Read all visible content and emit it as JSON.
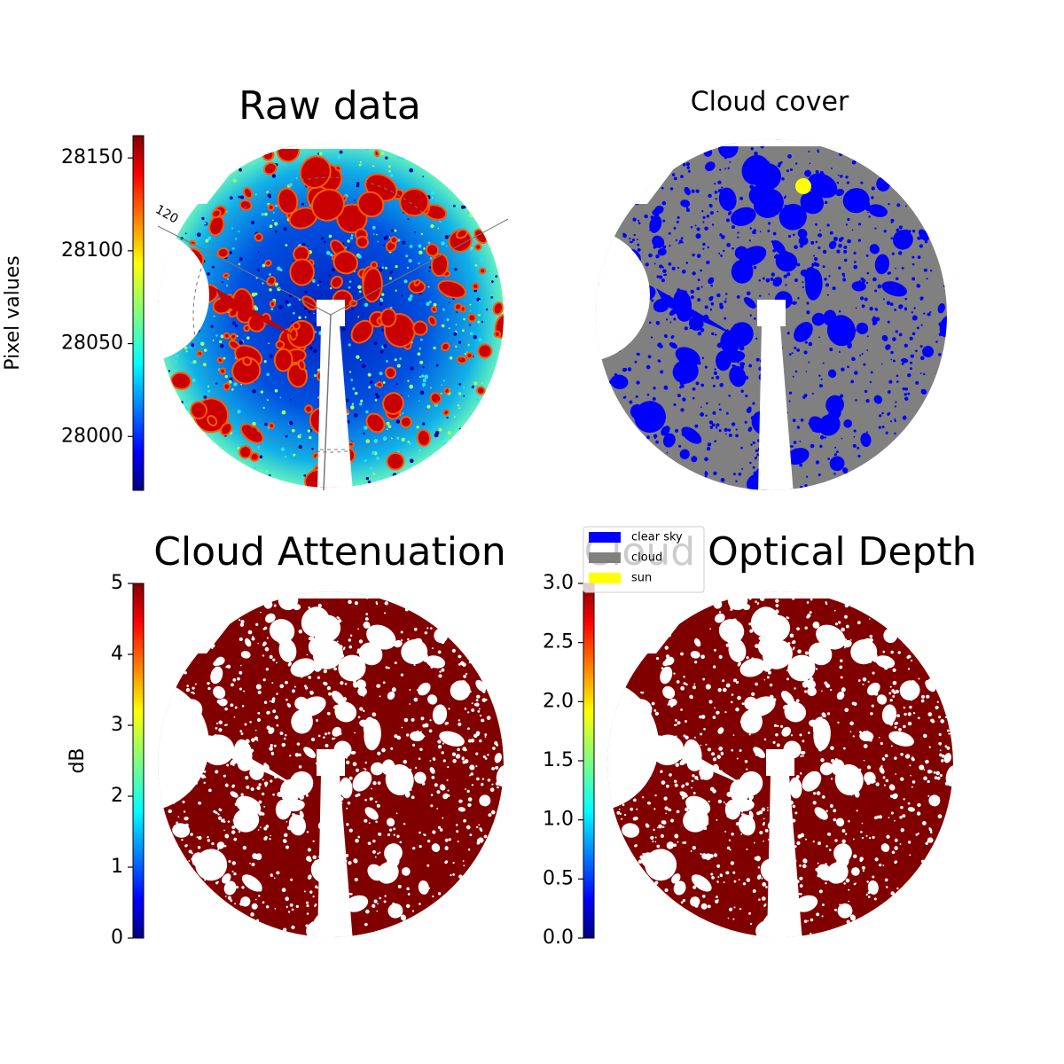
{
  "chart_data": [
    {
      "type": "image",
      "title": "Raw data",
      "colormap": "jet",
      "ylabel": "Pixel values",
      "ylim": [
        27971,
        28162
      ],
      "yticks": [
        28000,
        28050,
        28100,
        28150
      ],
      "annotations": [
        "120"
      ]
    },
    {
      "type": "image",
      "title": "Cloud cover",
      "series": [
        {
          "name": "clear sky",
          "color": "#0000ff"
        },
        {
          "name": "cloud",
          "color": "#808080"
        },
        {
          "name": "sun",
          "color": "#ffff00"
        }
      ]
    },
    {
      "type": "image",
      "title": "Cloud Attenuation",
      "colormap": "jet",
      "ylabel": "dB",
      "ylim": [
        0,
        5
      ],
      "yticks": [
        0,
        1,
        2,
        3,
        4,
        5
      ]
    },
    {
      "type": "image",
      "title": "Cloud Optical Depth",
      "colormap": "jet",
      "ylim": [
        0,
        3
      ],
      "yticks": [
        {
          "value": 0,
          "label": "0.0"
        },
        0.5,
        {
          "value": 1,
          "label": "1.0"
        },
        1.5,
        {
          "value": 2,
          "label": "2.0"
        },
        2.5,
        {
          "value": 3,
          "label": "3.0"
        }
      ]
    }
  ]
}
